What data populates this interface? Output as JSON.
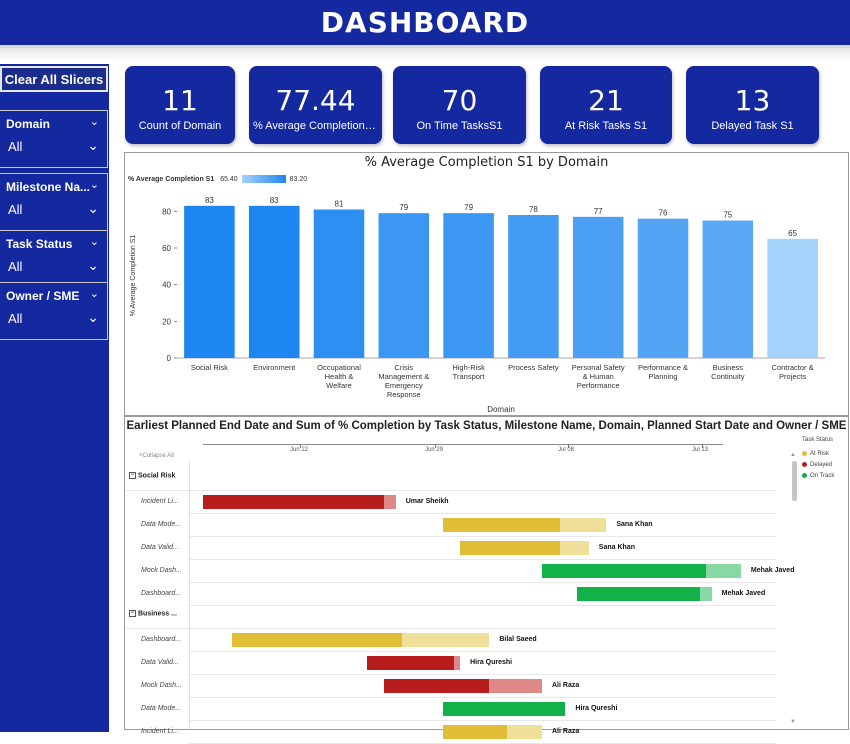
{
  "header": {
    "title": "DASHBOARD"
  },
  "sidebar": {
    "clear_label": "Clear All Slicers",
    "slicers": [
      {
        "label": "Domain",
        "value": "All"
      },
      {
        "label": "Milestone Na...",
        "value": "All"
      },
      {
        "label": "Task Status",
        "value": "All"
      },
      {
        "label": "Owner / SME",
        "value": "All"
      }
    ]
  },
  "kpis": [
    {
      "value": "11",
      "label": "Count of Domain"
    },
    {
      "value": "77.44",
      "label": "% Average Completion S1"
    },
    {
      "value": "70",
      "label": "On Time TasksS1"
    },
    {
      "value": "21",
      "label": "At Risk Tasks S1"
    },
    {
      "value": "13",
      "label": "Delayed Task S1"
    }
  ],
  "bar_chart": {
    "title": "% Average Completion S1 by Domain",
    "legend_label": "% Average Completion S1",
    "legend_min": "65.40",
    "legend_max": "83.20"
  },
  "chart_data": {
    "type": "bar",
    "title": "% Average Completion S1 by Domain",
    "xlabel": "Domain",
    "ylabel": "% Average Completion S1",
    "ylim": [
      0,
      90
    ],
    "yticks": [
      0,
      20,
      40,
      60,
      80
    ],
    "categories": [
      "Social Risk",
      "Environment",
      "Occupational Health & Welfare",
      "Crisis Management & Emergency Response",
      "High-Risk Transport",
      "Process Safety",
      "Personal Safety & Human Performance",
      "Performance & Planning",
      "Business Continuity",
      "Contractor & Projects"
    ],
    "values": [
      83,
      83,
      81,
      79,
      79,
      78,
      77,
      76,
      75,
      65
    ],
    "color_scale": {
      "min_color": "#a6d3fb",
      "max_color": "#1e86f0"
    },
    "grid": false
  },
  "gantt": {
    "title": "Earliest Planned End Date and Sum of % Completion by Task Status, Milestone Name, Domain, Planned Start Date and Owner / SME",
    "collapse_label": "Collapse All",
    "dates": [
      "Jun 22",
      "Jun 29",
      "Jul 08",
      "Jul 13"
    ],
    "legend_title": "Task Status",
    "legend": [
      {
        "label": "At Risk",
        "color": "#e0be35"
      },
      {
        "label": "Delayed",
        "color": "#b81d1d"
      },
      {
        "label": "On Track",
        "color": "#13b14a"
      }
    ],
    "groups": [
      {
        "name": "Social Risk",
        "tasks": [
          {
            "name": "Incident Li...",
            "owner": "Umar Sheikh",
            "status": "Delayed",
            "start": 0.02,
            "done_end": 0.33,
            "end": 0.35
          },
          {
            "name": "Data Mode...",
            "owner": "Sana Khan",
            "status": "At Risk",
            "start": 0.43,
            "done_end": 0.63,
            "end": 0.71
          },
          {
            "name": "Data Valid...",
            "owner": "Sana Khan",
            "status": "At Risk",
            "start": 0.46,
            "done_end": 0.63,
            "end": 0.68
          },
          {
            "name": "Mock Dash...",
            "owner": "Mehak Javed",
            "status": "On Track",
            "start": 0.6,
            "done_end": 0.88,
            "end": 0.94
          },
          {
            "name": "Dashboard...",
            "owner": "Mehak Javed",
            "status": "On Track",
            "start": 0.66,
            "done_end": 0.87,
            "end": 0.89
          }
        ]
      },
      {
        "name": "Business ...",
        "tasks": [
          {
            "name": "Dashboard...",
            "owner": "Bilal Saeed",
            "status": "At Risk",
            "start": 0.07,
            "done_end": 0.36,
            "end": 0.51
          },
          {
            "name": "Data Valid...",
            "owner": "Hira Qureshi",
            "status": "Delayed",
            "start": 0.3,
            "done_end": 0.45,
            "end": 0.46
          },
          {
            "name": "Mock Dash...",
            "owner": "Ali Raza",
            "status": "Delayed",
            "start": 0.33,
            "done_end": 0.51,
            "end": 0.6
          },
          {
            "name": "Data Mode...",
            "owner": "Hira Qureshi",
            "status": "On Track",
            "start": 0.43,
            "done_end": 0.64,
            "end": 0.64
          },
          {
            "name": "Incident Li...",
            "owner": "Ali Raza",
            "status": "At Risk",
            "start": 0.43,
            "done_end": 0.54,
            "end": 0.6
          }
        ]
      }
    ]
  }
}
